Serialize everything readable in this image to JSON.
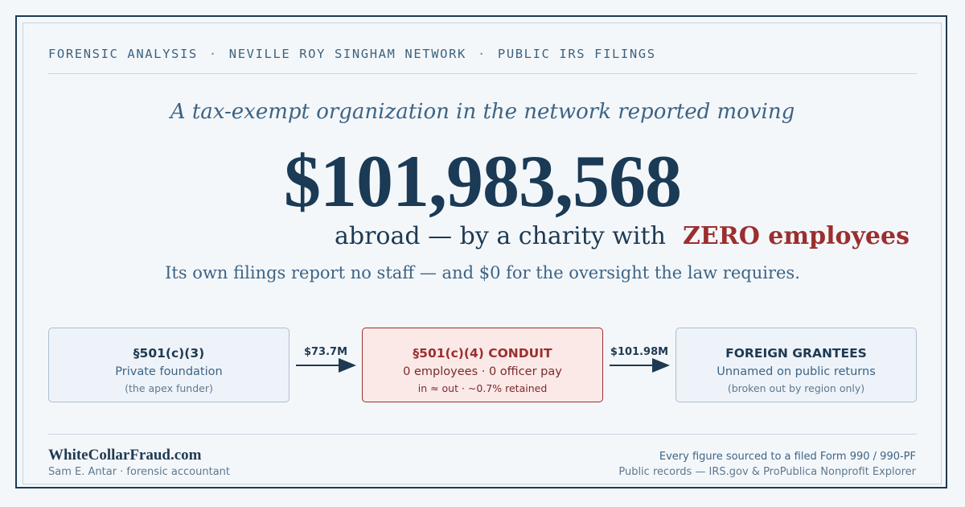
{
  "header": {
    "kicker": [
      "FORENSIC ANALYSIS",
      "NEVILLE ROY SINGHAM NETWORK",
      "PUBLIC IRS FILINGS"
    ],
    "separator": "·"
  },
  "headline": {
    "lede": "A tax-exempt organization in the network reported moving",
    "amount": "$101,983,568",
    "subline_lead": "abroad — by a charity with",
    "subline_emphasis": "ZERO employees",
    "note": "Its own filings report no staff — and $0 for the oversight the law requires."
  },
  "flow": {
    "nodes": [
      {
        "title": "§501(c)(3)",
        "subtitle": "Private foundation",
        "note": "(the apex funder)"
      },
      {
        "title": "§501(c)(4) CONDUIT",
        "subtitle": "0 employees · 0 officer pay",
        "note": "in ≈ out · ~0.7% retained"
      },
      {
        "title": "FOREIGN GRANTEES",
        "subtitle": "Unnamed on public returns",
        "note": "(broken out by region only)"
      }
    ],
    "edges": [
      {
        "from": 0,
        "to": 1,
        "label": "$73.7M"
      },
      {
        "from": 1,
        "to": 2,
        "label": "$101.98M"
      }
    ]
  },
  "footer": {
    "brand": "WhiteCollarFraud.com",
    "author": "Sam E. Antar · forensic accountant",
    "source_line_1": "Every figure sourced to a filed Form 990 / 990-PF",
    "source_line_2": "Public records — IRS.gov & ProPublica Nonprofit Explorer"
  },
  "colors": {
    "navy": "#1e3a52",
    "accent_red": "#9b2f2f",
    "muted_blue": "#3c6485",
    "background": "#f4f7fa"
  }
}
